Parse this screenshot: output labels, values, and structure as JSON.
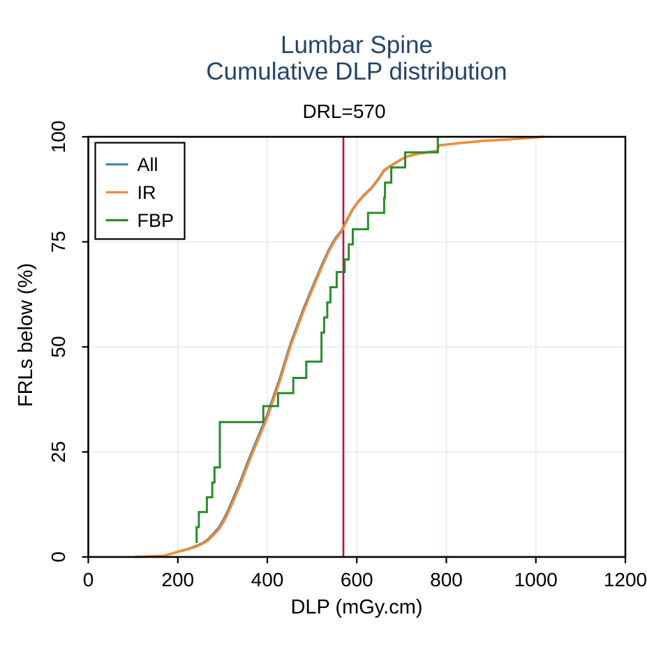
{
  "figure": {
    "title_line1": "Lumbar Spine",
    "title_line2": "Cumulative DLP distribution",
    "annotation": "DRL=570",
    "title_color": "#25436b",
    "background_color": "#ffffff",
    "frame_color": "#000000",
    "grid_color": "#e2eaf0"
  },
  "chart_data": {
    "type": "line",
    "title": "Lumbar Spine Cumulative DLP distribution",
    "title_lines": [
      "Lumbar Spine",
      "Cumulative DLP distribution"
    ],
    "annotation": "DRL=570",
    "xlabel": "DLP (mGy.cm)",
    "ylabel": "FRLs below (%)",
    "xlim": [
      0,
      1200
    ],
    "ylim": [
      0,
      100
    ],
    "xticks": [
      0,
      200,
      400,
      600,
      800,
      1000,
      1200
    ],
    "yticks": [
      0,
      25,
      50,
      75,
      100
    ],
    "grid": true,
    "legend_position": "top-left",
    "legend_entries": [
      "All",
      "IR",
      "FBP"
    ],
    "reference_line": {
      "x": 570,
      "label": "DRL=570",
      "color": "#c10d3f"
    },
    "series": [
      {
        "name": "All",
        "color": "#4884af",
        "points": [
          [
            105,
            0
          ],
          [
            170,
            0.3
          ],
          [
            200,
            1.3
          ],
          [
            222,
            1.9
          ],
          [
            240,
            2.6
          ],
          [
            255,
            3.3
          ],
          [
            266,
            4.1
          ],
          [
            278,
            5.4
          ],
          [
            292,
            7.1
          ],
          [
            302,
            8.9
          ],
          [
            312,
            11.1
          ],
          [
            325,
            14.3
          ],
          [
            340,
            18.1
          ],
          [
            355,
            22.3
          ],
          [
            370,
            26.3
          ],
          [
            385,
            30.1
          ],
          [
            400,
            34.0
          ],
          [
            413,
            38.0
          ],
          [
            427,
            42.3
          ],
          [
            440,
            46.8
          ],
          [
            453,
            51.2
          ],
          [
            467,
            55.2
          ],
          [
            480,
            58.9
          ],
          [
            495,
            62.8
          ],
          [
            510,
            66.6
          ],
          [
            524,
            70.1
          ],
          [
            538,
            73.3
          ],
          [
            552,
            75.9
          ],
          [
            565,
            77.6
          ],
          [
            578,
            80.3
          ],
          [
            590,
            82.7
          ],
          [
            602,
            84.5
          ],
          [
            618,
            86.4
          ],
          [
            632,
            87.8
          ],
          [
            648,
            90.0
          ],
          [
            660,
            92.0
          ],
          [
            675,
            93.1
          ],
          [
            695,
            94.4
          ],
          [
            710,
            95.3
          ],
          [
            739,
            96.1
          ],
          [
            780,
            96.7
          ],
          [
            783,
            98.0
          ],
          [
            830,
            98.5
          ],
          [
            880,
            99.0
          ],
          [
            947,
            99.4
          ],
          [
            995,
            99.8
          ],
          [
            1012,
            100
          ],
          [
            1020,
            100
          ]
        ]
      },
      {
        "name": "IR",
        "color": "#f68b33",
        "points": [
          [
            105,
            0
          ],
          [
            170,
            0.3
          ],
          [
            200,
            1.2
          ],
          [
            222,
            1.8
          ],
          [
            240,
            2.4
          ],
          [
            255,
            3.1
          ],
          [
            266,
            3.8
          ],
          [
            278,
            5.0
          ],
          [
            292,
            6.6
          ],
          [
            302,
            8.3
          ],
          [
            312,
            10.4
          ],
          [
            325,
            13.5
          ],
          [
            340,
            17.3
          ],
          [
            355,
            21.5
          ],
          [
            370,
            25.5
          ],
          [
            385,
            29.3
          ],
          [
            400,
            33.2
          ],
          [
            413,
            37.2
          ],
          [
            427,
            41.5
          ],
          [
            440,
            46.0
          ],
          [
            453,
            50.5
          ],
          [
            467,
            54.5
          ],
          [
            480,
            58.2
          ],
          [
            495,
            62.2
          ],
          [
            510,
            66.0
          ],
          [
            524,
            69.5
          ],
          [
            538,
            72.8
          ],
          [
            552,
            75.5
          ],
          [
            565,
            77.3
          ],
          [
            578,
            80.0
          ],
          [
            590,
            82.5
          ],
          [
            602,
            84.3
          ],
          [
            618,
            86.2
          ],
          [
            632,
            87.6
          ],
          [
            648,
            89.8
          ],
          [
            660,
            91.8
          ],
          [
            675,
            93.0
          ],
          [
            695,
            94.3
          ],
          [
            710,
            95.2
          ],
          [
            739,
            96.0
          ],
          [
            780,
            96.6
          ],
          [
            783,
            97.9
          ],
          [
            830,
            98.5
          ],
          [
            880,
            99.0
          ],
          [
            947,
            99.4
          ],
          [
            995,
            99.8
          ],
          [
            1012,
            100
          ],
          [
            1020,
            100
          ]
        ]
      },
      {
        "name": "FBP",
        "color": "#2b8a2e",
        "step": true,
        "points": [
          [
            242,
            3.3
          ],
          [
            242,
            7.1
          ],
          [
            247,
            7.1
          ],
          [
            247,
            10.7
          ],
          [
            265,
            10.7
          ],
          [
            265,
            14.2
          ],
          [
            277,
            14.2
          ],
          [
            277,
            17.7
          ],
          [
            282,
            17.7
          ],
          [
            282,
            21.3
          ],
          [
            294,
            21.3
          ],
          [
            294,
            32.1
          ],
          [
            391,
            32.1
          ],
          [
            391,
            35.9
          ],
          [
            424,
            35.9
          ],
          [
            424,
            39.0
          ],
          [
            458,
            39.0
          ],
          [
            458,
            42.6
          ],
          [
            487,
            42.6
          ],
          [
            487,
            46.5
          ],
          [
            521,
            46.5
          ],
          [
            521,
            53.4
          ],
          [
            527,
            53.4
          ],
          [
            527,
            57.0
          ],
          [
            534,
            57.0
          ],
          [
            534,
            60.6
          ],
          [
            541,
            60.6
          ],
          [
            541,
            64.2
          ],
          [
            555,
            64.2
          ],
          [
            555,
            67.8
          ],
          [
            573,
            67.8
          ],
          [
            573,
            70.8
          ],
          [
            582,
            70.8
          ],
          [
            582,
            74.4
          ],
          [
            591,
            74.4
          ],
          [
            591,
            78.0
          ],
          [
            625,
            78.0
          ],
          [
            625,
            81.9
          ],
          [
            661,
            81.9
          ],
          [
            661,
            85.5
          ],
          [
            663,
            85.5
          ],
          [
            663,
            89.1
          ],
          [
            677,
            89.1
          ],
          [
            677,
            92.7
          ],
          [
            708,
            92.7
          ],
          [
            708,
            96.3
          ],
          [
            781,
            96.3
          ],
          [
            781,
            100
          ]
        ]
      }
    ]
  }
}
